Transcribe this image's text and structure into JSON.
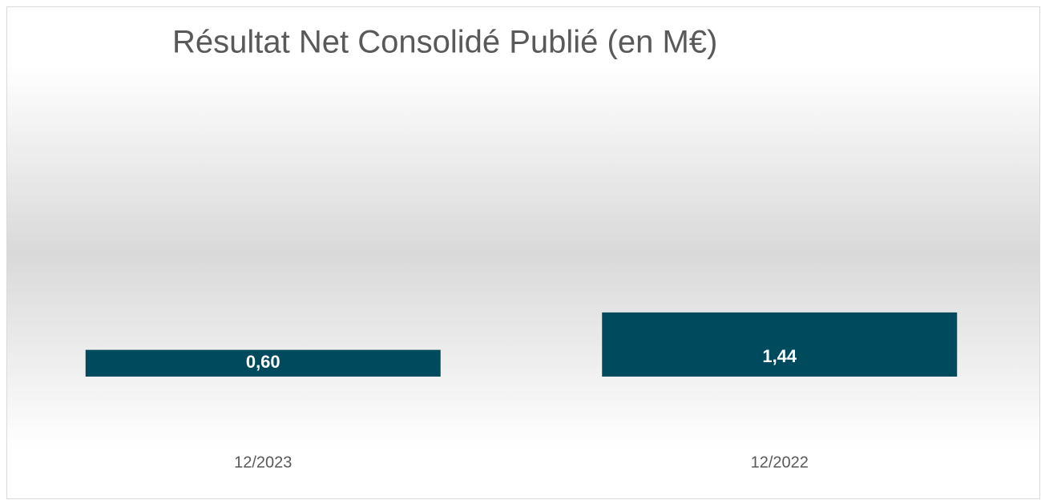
{
  "chart_data": {
    "type": "bar",
    "title": "Résultat Net Consolidé Publié (en M€)",
    "categories": [
      "12/2023",
      "12/2022"
    ],
    "values": [
      0.6,
      1.44
    ],
    "value_labels": [
      "0,60",
      "1,44"
    ],
    "color": "#004a5e"
  }
}
